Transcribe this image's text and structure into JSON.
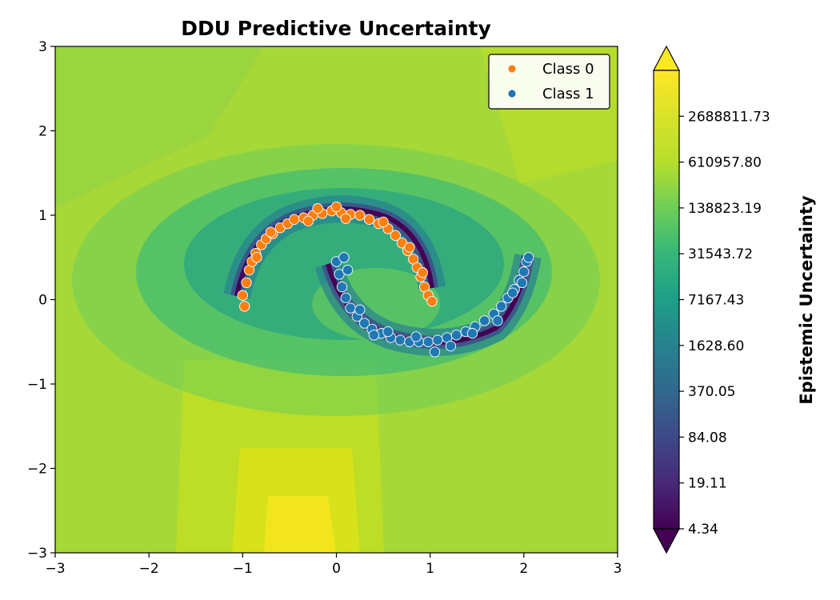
{
  "chart_data": {
    "type": "scatter",
    "title": "DDU Predictive Uncertainty",
    "xlabel": "",
    "ylabel": "",
    "xlim": [
      -3,
      3
    ],
    "ylim": [
      -3,
      3
    ],
    "x_ticks": [
      -3,
      -2,
      -1,
      0,
      1,
      2,
      3
    ],
    "y_ticks": [
      -3,
      -2,
      -1,
      0,
      1,
      2,
      3
    ],
    "x_tick_labels": [
      "−3",
      "−2",
      "−1",
      "0",
      "1",
      "2",
      "3"
    ],
    "y_tick_labels": [
      "−3",
      "−2",
      "−1",
      "0",
      "1",
      "2",
      "3"
    ],
    "grid": false,
    "legend_position": "top-right",
    "background": "contour map of epistemic uncertainty (log-scaled viridis colormap)",
    "series": [
      {
        "name": "Class 0",
        "color": "#ff7f0e",
        "shape": "upper half-moon",
        "points": [
          [
            -1.0,
            0.05
          ],
          [
            -0.98,
            -0.08
          ],
          [
            -0.96,
            0.2
          ],
          [
            -0.93,
            0.35
          ],
          [
            -0.9,
            0.45
          ],
          [
            -0.86,
            0.55
          ],
          [
            -0.8,
            0.65
          ],
          [
            -0.75,
            0.72
          ],
          [
            -0.68,
            0.78
          ],
          [
            -0.6,
            0.85
          ],
          [
            -0.52,
            0.9
          ],
          [
            -0.45,
            0.95
          ],
          [
            -0.35,
            0.97
          ],
          [
            -0.25,
            1.0
          ],
          [
            -0.15,
            1.02
          ],
          [
            -0.05,
            1.05
          ],
          [
            0.05,
            1.03
          ],
          [
            0.15,
            1.01
          ],
          [
            0.25,
            1.0
          ],
          [
            0.35,
            0.95
          ],
          [
            0.45,
            0.9
          ],
          [
            0.55,
            0.84
          ],
          [
            0.63,
            0.76
          ],
          [
            0.7,
            0.67
          ],
          [
            0.76,
            0.58
          ],
          [
            0.82,
            0.48
          ],
          [
            0.86,
            0.38
          ],
          [
            0.9,
            0.27
          ],
          [
            0.94,
            0.15
          ],
          [
            0.98,
            0.05
          ],
          [
            1.02,
            -0.02
          ],
          [
            -0.85,
            0.5
          ],
          [
            -0.7,
            0.8
          ],
          [
            -0.3,
            0.93
          ],
          [
            0.1,
            0.96
          ],
          [
            0.5,
            0.92
          ],
          [
            0.78,
            0.62
          ],
          [
            0.92,
            0.32
          ],
          [
            -0.2,
            1.08
          ],
          [
            0.0,
            1.1
          ]
        ]
      },
      {
        "name": "Class 1",
        "color": "#1f77b4",
        "shape": "lower half-moon",
        "points": [
          [
            0.0,
            0.45
          ],
          [
            0.03,
            0.3
          ],
          [
            0.06,
            0.15
          ],
          [
            0.1,
            0.02
          ],
          [
            0.15,
            -0.1
          ],
          [
            0.22,
            -0.2
          ],
          [
            0.3,
            -0.28
          ],
          [
            0.38,
            -0.35
          ],
          [
            0.48,
            -0.4
          ],
          [
            0.58,
            -0.45
          ],
          [
            0.68,
            -0.48
          ],
          [
            0.78,
            -0.5
          ],
          [
            0.88,
            -0.5
          ],
          [
            0.98,
            -0.5
          ],
          [
            1.08,
            -0.48
          ],
          [
            1.18,
            -0.45
          ],
          [
            1.28,
            -0.42
          ],
          [
            1.38,
            -0.38
          ],
          [
            1.48,
            -0.32
          ],
          [
            1.58,
            -0.25
          ],
          [
            1.68,
            -0.17
          ],
          [
            1.76,
            -0.08
          ],
          [
            1.83,
            0.02
          ],
          [
            1.9,
            0.12
          ],
          [
            1.95,
            0.23
          ],
          [
            2.0,
            0.33
          ],
          [
            2.03,
            0.45
          ],
          [
            2.05,
            0.5
          ],
          [
            0.08,
            0.5
          ],
          [
            0.25,
            -0.12
          ],
          [
            0.55,
            -0.38
          ],
          [
            0.85,
            -0.44
          ],
          [
            1.05,
            -0.62
          ],
          [
            1.22,
            -0.55
          ],
          [
            1.45,
            -0.4
          ],
          [
            1.72,
            -0.25
          ],
          [
            1.88,
            0.08
          ],
          [
            1.98,
            0.2
          ],
          [
            0.12,
            0.35
          ],
          [
            0.4,
            -0.42
          ]
        ]
      }
    ],
    "colorbar": {
      "label": "Epistemic Uncertainty",
      "colormap": "viridis",
      "scale": "log",
      "extend": "both",
      "ticks": [
        4.34,
        19.11,
        84.08,
        370.05,
        1628.6,
        7167.43,
        31543.72,
        138823.19,
        610957.8,
        2688811.73
      ],
      "tick_labels": [
        "4.34",
        "19.11",
        "84.08",
        "370.05",
        "1628.60",
        "7167.43",
        "31543.72",
        "138823.19",
        "610957.80",
        "2688811.73"
      ]
    }
  }
}
